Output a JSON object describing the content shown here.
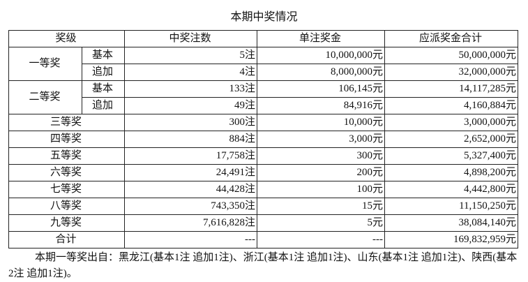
{
  "header": {
    "title": "本期中奖情况"
  },
  "table": {
    "columns": [
      "奖级",
      "中奖注数",
      "单注奖金",
      "应派奖金合计"
    ],
    "rows": [
      [
        "一等奖",
        "基本",
        "5注",
        "10,000,000元",
        "50,000,000元"
      ],
      [
        "追加",
        "4注",
        "8,000,000元",
        "32,000,000元"
      ],
      [
        "二等奖",
        "基本",
        "133注",
        "106,145元",
        "14,117,285元"
      ],
      [
        "追加",
        "49注",
        "84,916元",
        "4,160,884元"
      ],
      [
        "三等奖",
        "300注",
        "10,000元",
        "3,000,000元"
      ],
      [
        "四等奖",
        "884注",
        "3,000元",
        "2,652,000元"
      ],
      [
        "五等奖",
        "17,758注",
        "300元",
        "5,327,400元"
      ],
      [
        "六等奖",
        "24,491注",
        "200元",
        "4,898,200元"
      ],
      [
        "七等奖",
        "44,428注",
        "100元",
        "4,442,800元"
      ],
      [
        "八等奖",
        "743,350注",
        "15元",
        "11,150,250元"
      ],
      [
        "九等奖",
        "7,616,828注",
        "5元",
        "38,084,140元"
      ],
      [
        "合计",
        "---",
        "---",
        "169,832,959元"
      ]
    ]
  },
  "note": "本期一等奖出自：黑龙江(基本1注 追加1注)、浙江(基本1注 追加1注)、山东(基本1注 追加1注)、陕西(基本2注 追加1注)。"
}
